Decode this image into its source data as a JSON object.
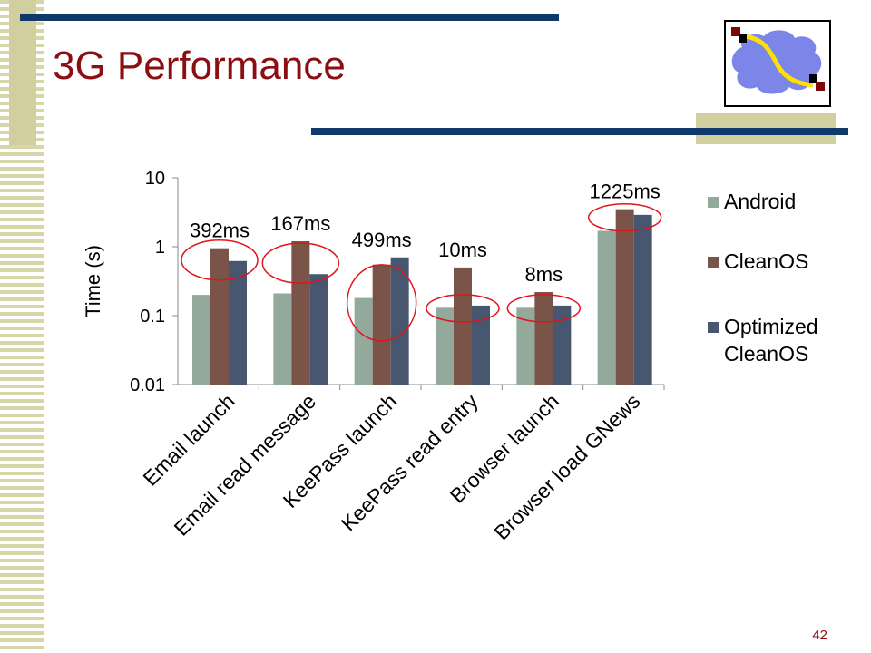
{
  "slide": {
    "title": "3G Performance",
    "page_number": "42",
    "colors": {
      "title": "#8b0f12",
      "accent_blue": "#10396b",
      "accent_khaki": "#d1cfa0"
    }
  },
  "logo": {
    "icon": "network-cloud-logo-icon",
    "colors": {
      "cloud": "#7c86e8",
      "path": "#ffe100",
      "node_dark": "#7a0a0a",
      "node_black": "#000000"
    }
  },
  "chart_data": {
    "type": "bar",
    "scale": "log",
    "ylim": [
      0.01,
      10
    ],
    "yticks": [
      "10",
      "1",
      "0.1",
      "0.01"
    ],
    "ytick_values": [
      10,
      1,
      0.1,
      0.01
    ],
    "ylabel": "Time (s)",
    "xlabel": "",
    "legend_position": "right",
    "categories": [
      "Email launch",
      "Email read message",
      "KeePass launch",
      "KeePass read entry",
      "Browser launch",
      "Browser load GNews"
    ],
    "series": [
      {
        "name": "Android",
        "color": "#93a99c",
        "values": [
          0.2,
          0.21,
          0.18,
          0.13,
          0.13,
          1.7
        ]
      },
      {
        "name": "CleanOS",
        "color": "#7a5449",
        "values": [
          0.95,
          1.2,
          0.55,
          0.5,
          0.22,
          3.5
        ]
      },
      {
        "name": "Optimized CleanOS",
        "legend_lines": [
          "Optimized",
          "CleanOS"
        ],
        "color": "#47576f",
        "values": [
          0.62,
          0.4,
          0.7,
          0.14,
          0.14,
          2.9
        ]
      }
    ],
    "annotations": [
      "392ms",
      "167ms",
      "499ms",
      "10ms",
      "8ms",
      "1225ms"
    ],
    "highlight_color": "#e0141b",
    "grid": false
  }
}
